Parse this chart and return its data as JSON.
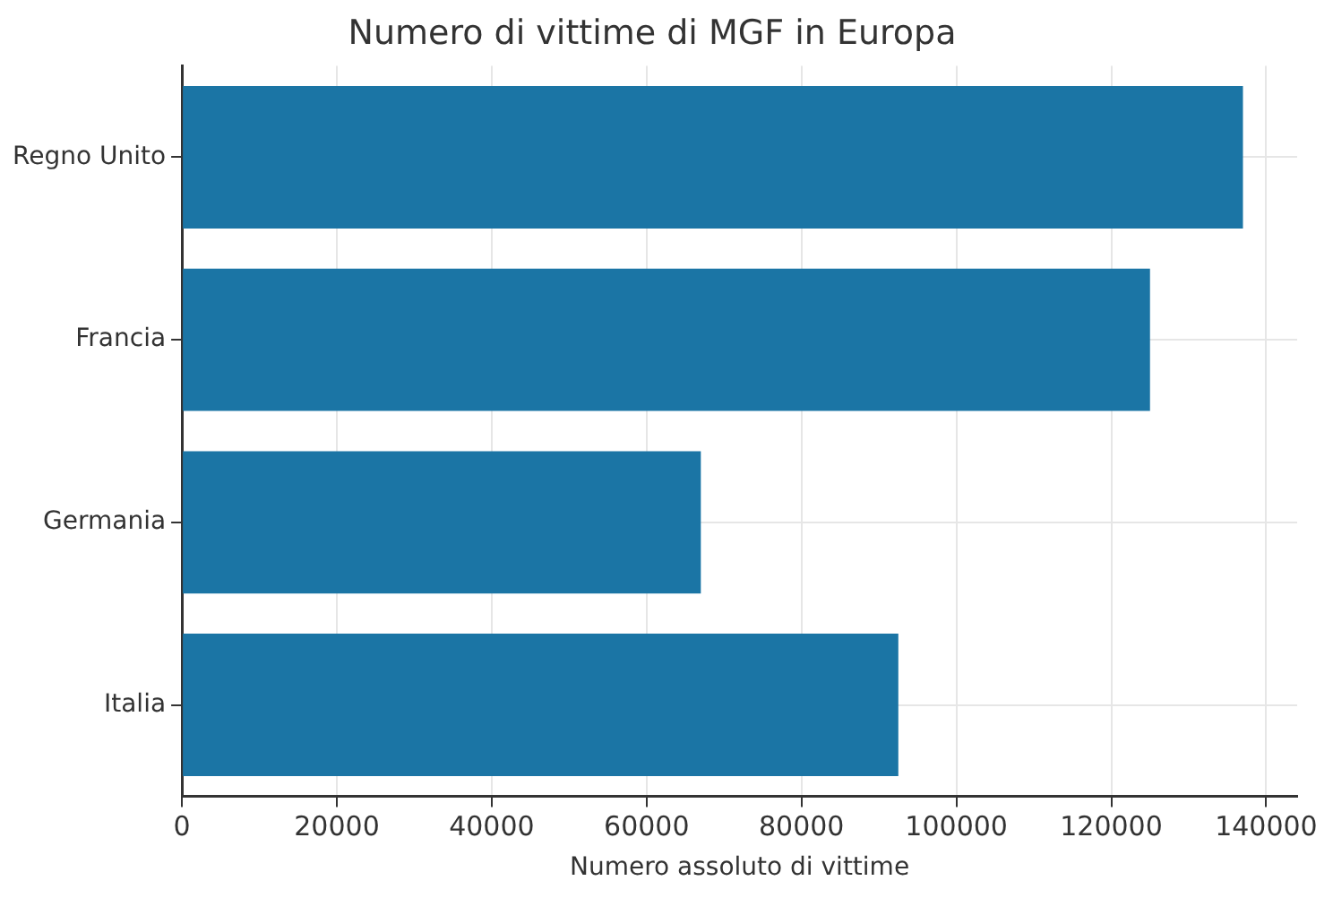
{
  "chart_data": {
    "type": "bar",
    "orientation": "horizontal",
    "title": "Numero di vittime di MGF in Europa",
    "xlabel": "Numero assoluto di vittime",
    "categories": [
      "Regno Unito",
      "Francia",
      "Germania",
      "Italia"
    ],
    "values": [
      137000,
      125000,
      67000,
      92500
    ],
    "color": "#1b75a5",
    "xlim": [
      0,
      144000
    ],
    "xticks": [
      0,
      20000,
      40000,
      60000,
      80000,
      100000,
      120000,
      140000
    ],
    "grid": true
  }
}
